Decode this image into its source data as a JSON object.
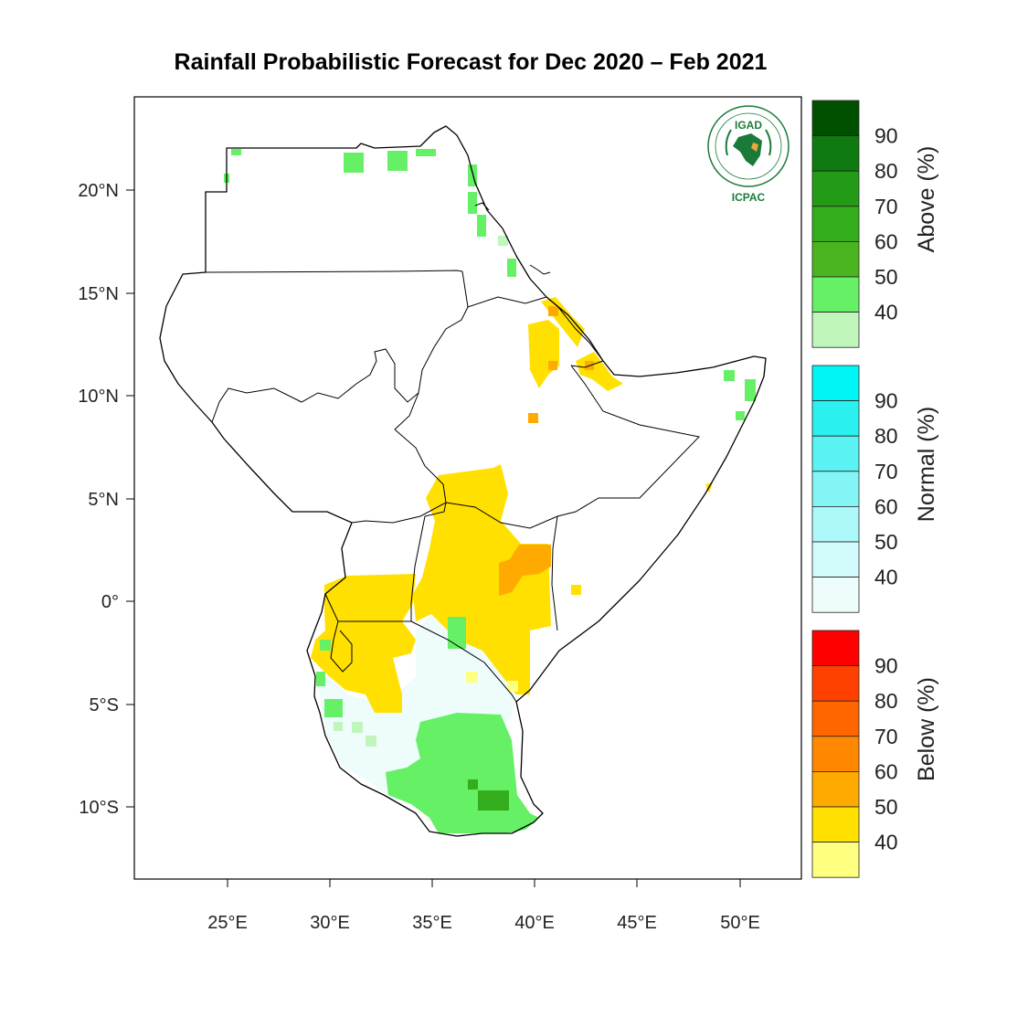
{
  "title": "Rainfall Probabilistic Forecast for Dec 2020 – Feb 2021",
  "map": {
    "lat_ticks": [
      "20°N",
      "15°N",
      "10°N",
      "5°N",
      "0°",
      "5°S",
      "10°S"
    ],
    "lon_ticks": [
      "25°E",
      "30°E",
      "35°E",
      "40°E",
      "45°E",
      "50°E"
    ],
    "extent": {
      "lon_min": 20.9,
      "lon_max": 53.5,
      "lat_min": -13.5,
      "lat_max": 23.3
    }
  },
  "logo": {
    "name": "IGAD",
    "subtitle": "ICPAC"
  },
  "legend": {
    "above": {
      "title": "Above (%)",
      "labels": [
        "90",
        "80",
        "70",
        "60",
        "50",
        "40"
      ],
      "colors": [
        "#005000",
        "#0f7a0f",
        "#239b16",
        "#34ad1d",
        "#4bb520",
        "#66f066",
        "#c0f5bc"
      ]
    },
    "normal": {
      "title": "Normal (%)",
      "labels": [
        "90",
        "80",
        "70",
        "60",
        "50",
        "40"
      ],
      "colors": [
        "#00f5f5",
        "#2bf0f0",
        "#5af2f2",
        "#84f5f5",
        "#adf8f8",
        "#d4fbfb",
        "#eefcfc"
      ]
    },
    "below": {
      "title": "Below (%)",
      "labels": [
        "90",
        "80",
        "70",
        "60",
        "50",
        "40"
      ],
      "colors": [
        "#ff0000",
        "#ff4000",
        "#ff6600",
        "#ff8800",
        "#ffaa00",
        "#ffe000",
        "#ffff80"
      ]
    }
  },
  "regions": [
    {
      "category": "below",
      "level": "40",
      "color": "#ffe000"
    },
    {
      "category": "below",
      "level": "60",
      "color": "#ffaa00"
    },
    {
      "category": "normal",
      "level": "40",
      "color": "#eefcfc"
    },
    {
      "category": "above",
      "level": "40",
      "color": "#66f066"
    },
    {
      "category": "above",
      "level": "60",
      "color": "#34ad1d"
    }
  ]
}
